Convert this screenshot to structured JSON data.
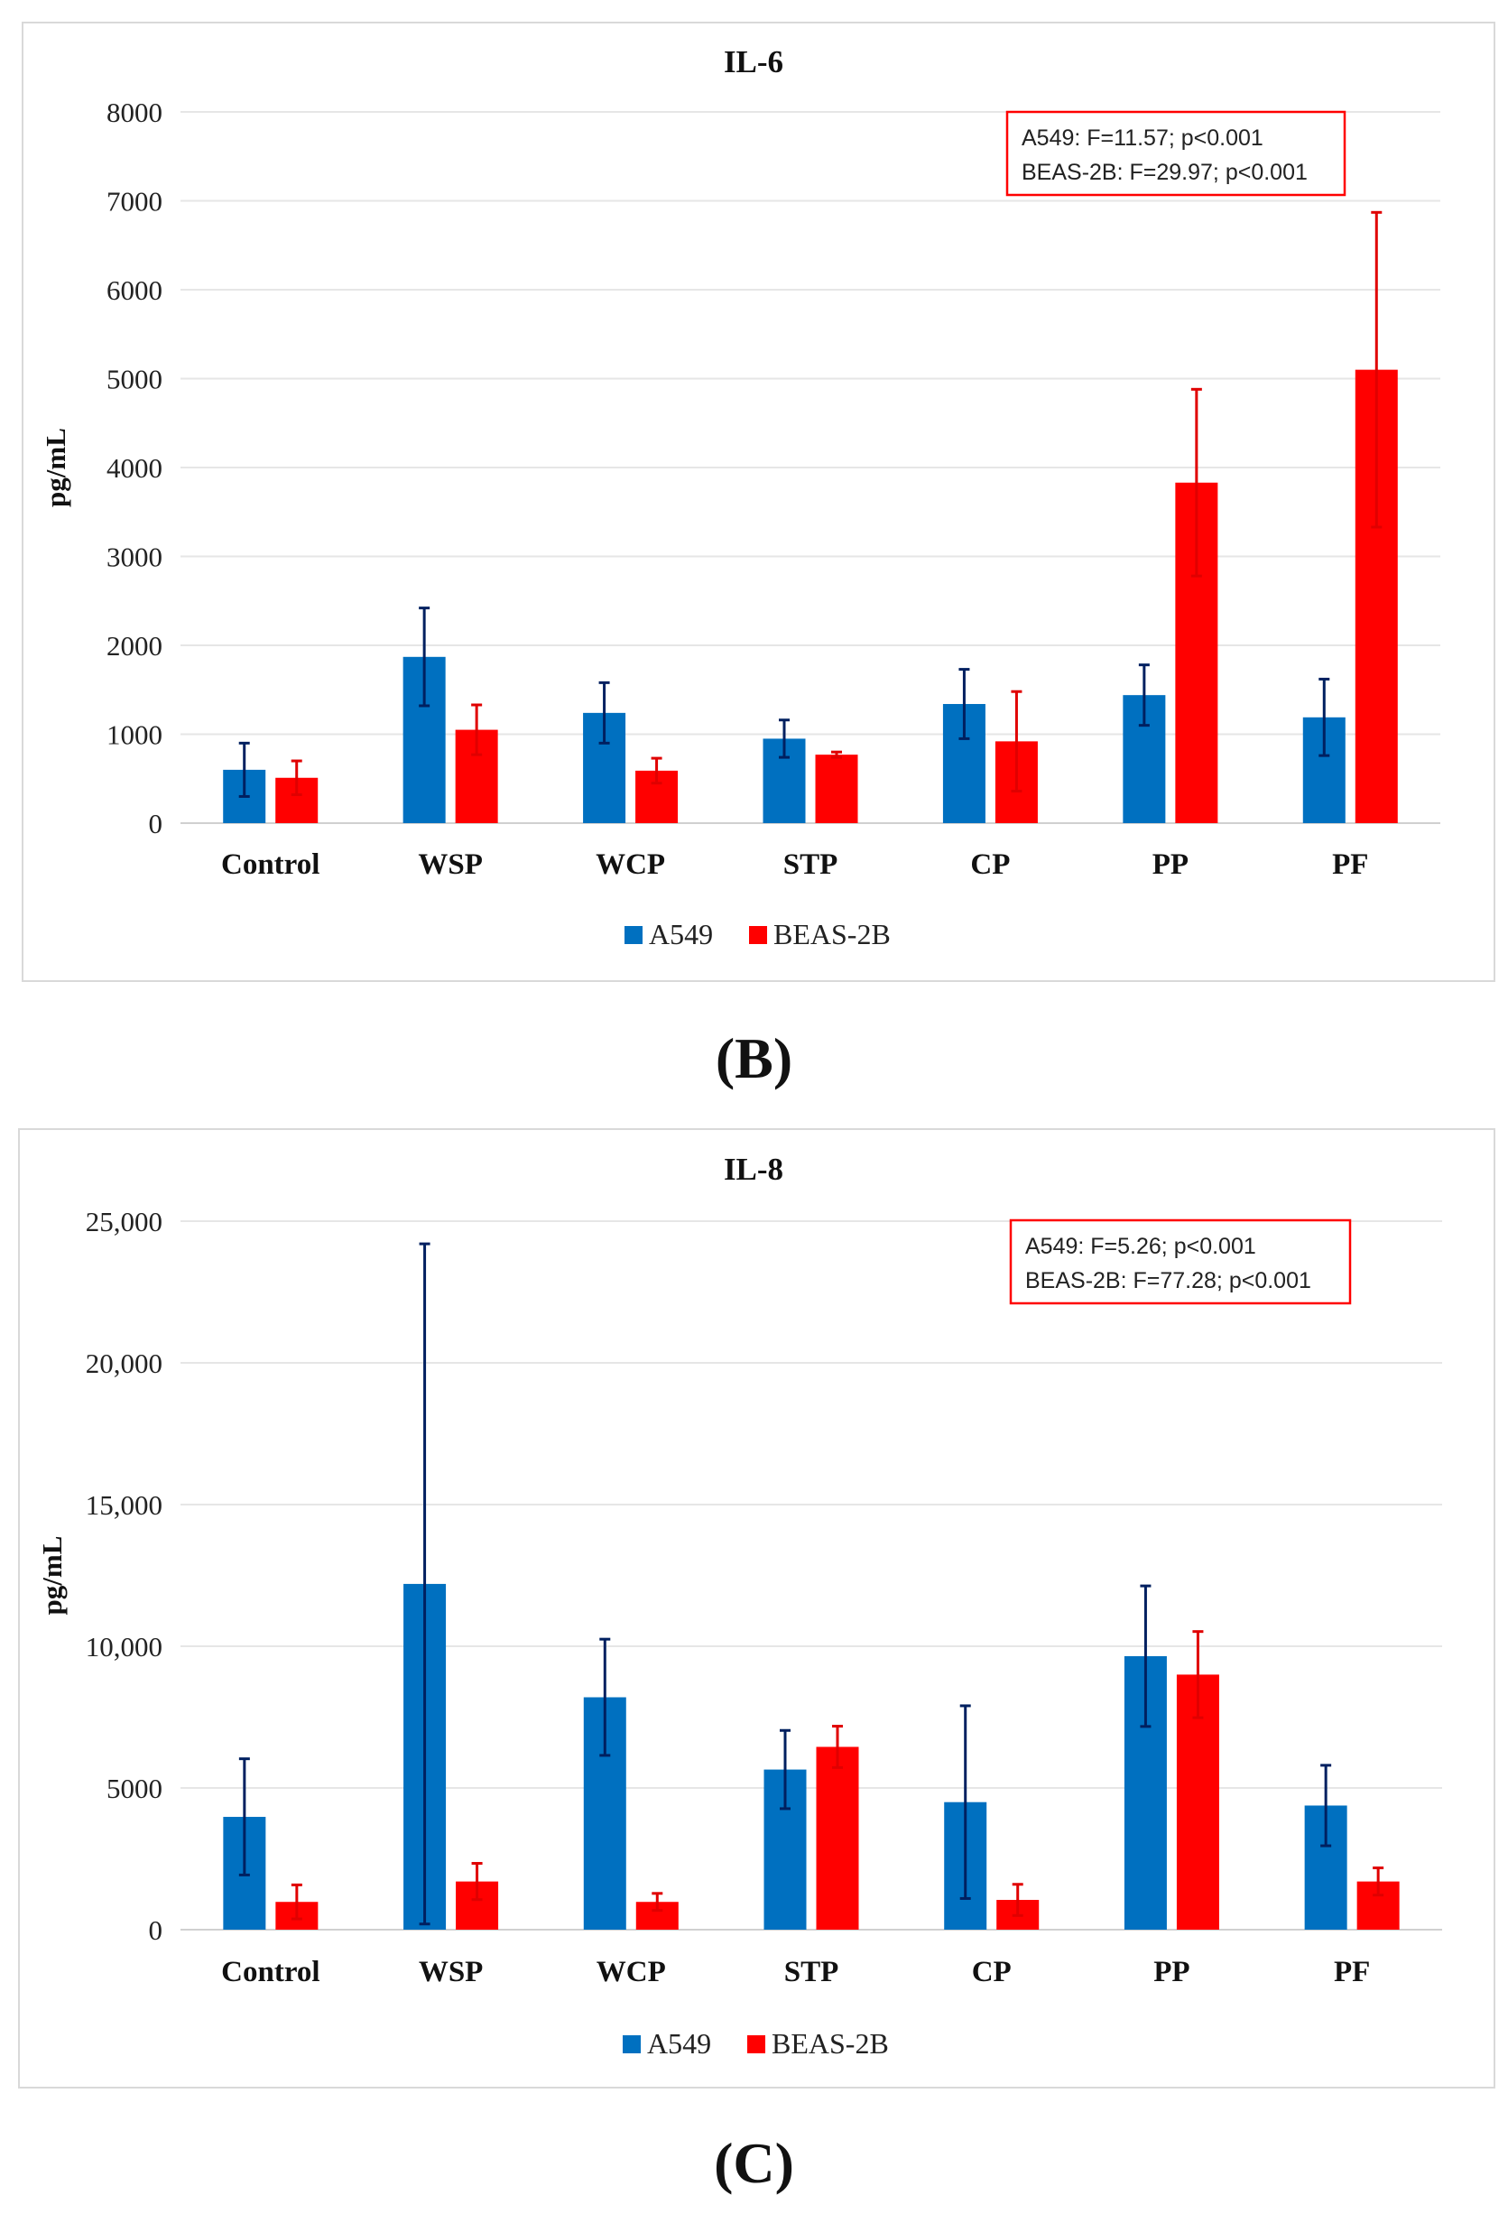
{
  "chart_data": [
    {
      "type": "bar",
      "title": "IL-6",
      "ylabel": "pg/mL",
      "xlabel": "",
      "categories": [
        "Control",
        "WSP",
        "WCP",
        "STP",
        "CP",
        "PP",
        "PF"
      ],
      "ylim": [
        0,
        8000
      ],
      "yticks": [
        0,
        1000,
        2000,
        3000,
        4000,
        5000,
        6000,
        7000,
        8000
      ],
      "ytick_labels": [
        "0",
        "1000",
        "2000",
        "3000",
        "4000",
        "5000",
        "6000",
        "7000",
        "8000"
      ],
      "grid": true,
      "legend": "bottom",
      "series": [
        {
          "name": "A549",
          "color": "#0070c0",
          "error_color": "#002060",
          "values": [
            600,
            1870,
            1240,
            950,
            1340,
            1440,
            1190
          ],
          "errors": [
            300,
            550,
            340,
            210,
            390,
            340,
            430
          ]
        },
        {
          "name": "BEAS-2B",
          "color": "#ff0000",
          "error_color": "#e00000",
          "values": [
            510,
            1050,
            590,
            770,
            920,
            3830,
            5100
          ],
          "errors": [
            190,
            280,
            140,
            30,
            560,
            1050,
            1770
          ]
        }
      ],
      "annotation": [
        "A549: F=11.57; p<0.001",
        "BEAS-2B: F=29.97; p<0.001"
      ],
      "panel_label": "(B)"
    },
    {
      "type": "bar",
      "title": "IL-8",
      "ylabel": "pg/mL",
      "xlabel": "",
      "categories": [
        "Control",
        "WSP",
        "WCP",
        "STP",
        "CP",
        "PP",
        "PF"
      ],
      "ylim": [
        0,
        25000
      ],
      "yticks": [
        0,
        5000,
        10000,
        15000,
        20000,
        25000
      ],
      "ytick_labels": [
        "0",
        "5000",
        "10,000",
        "15,000",
        "20,000",
        "25,000"
      ],
      "grid": true,
      "legend": "bottom",
      "series": [
        {
          "name": "A549",
          "color": "#0070c0",
          "error_color": "#002060",
          "values": [
            3980,
            12200,
            8200,
            5650,
            4500,
            9650,
            4380
          ],
          "errors": [
            2050,
            12000,
            2050,
            1380,
            3400,
            2480,
            1420
          ]
        },
        {
          "name": "BEAS-2B",
          "color": "#ff0000",
          "error_color": "#e00000",
          "values": [
            980,
            1700,
            980,
            6450,
            1050,
            9000,
            1700
          ],
          "errors": [
            600,
            640,
            300,
            730,
            550,
            1520,
            480
          ]
        }
      ],
      "annotation": [
        "A549: F=5.26; p<0.001",
        "BEAS-2B: F=77.28; p<0.001"
      ],
      "panel_label": "(C)"
    }
  ]
}
